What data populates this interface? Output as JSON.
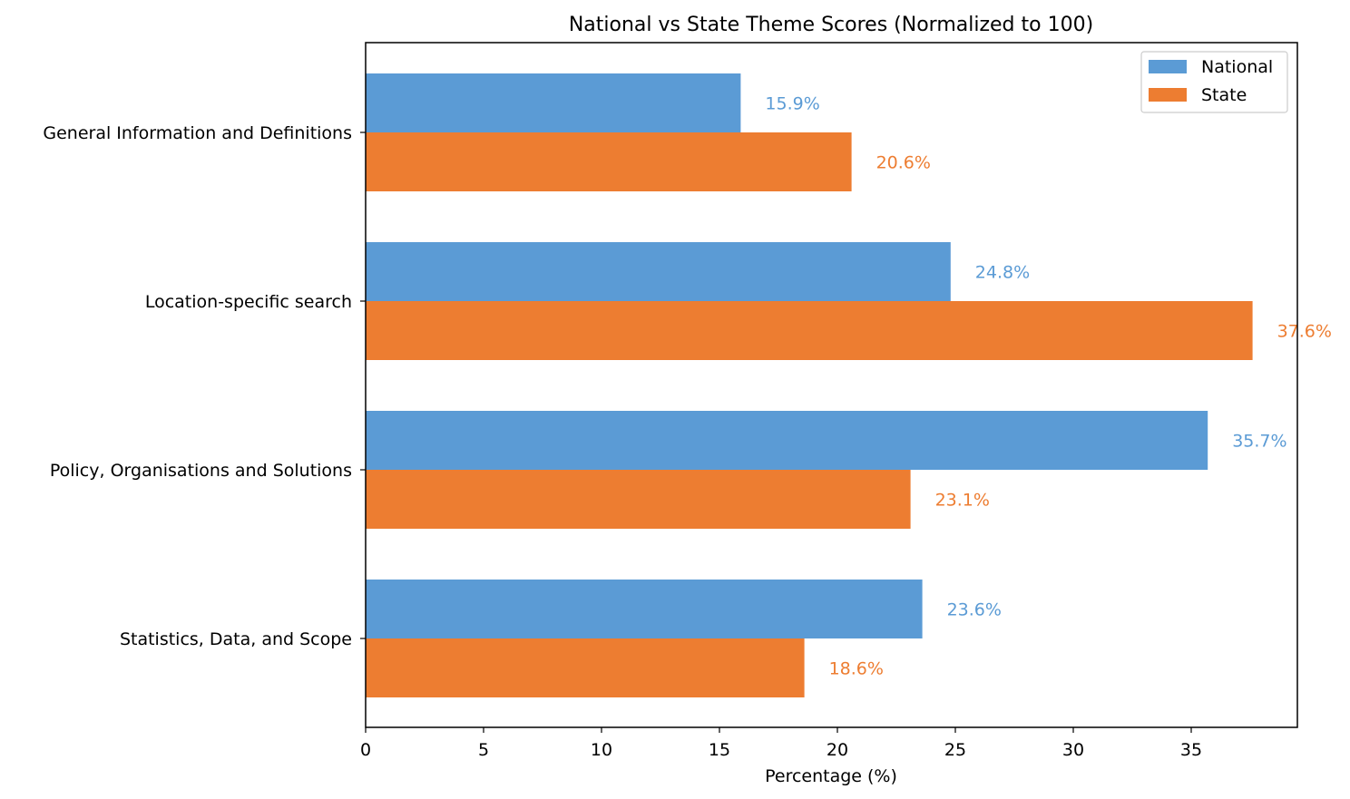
{
  "chart_data": {
    "type": "bar",
    "orientation": "horizontal",
    "title": "National vs State Theme Scores (Normalized to 100)",
    "xlabel": "Percentage (%)",
    "ylabel": "",
    "xlim": [
      0,
      39.5
    ],
    "xticks": [
      0,
      5,
      10,
      15,
      20,
      25,
      30,
      35
    ],
    "categories": [
      "General Information and Definitions",
      "Location-specific search",
      "Policy, Organisations and Solutions",
      "Statistics, Data, and Scope"
    ],
    "series": [
      {
        "name": "National",
        "color": "#5b9bd5",
        "values": [
          15.9,
          24.8,
          35.7,
          23.6
        ]
      },
      {
        "name": "State",
        "color": "#ed7d31",
        "values": [
          20.6,
          37.6,
          23.1,
          18.6
        ]
      }
    ],
    "value_label_suffix": "%",
    "legend": "top-right",
    "grid": false
  }
}
